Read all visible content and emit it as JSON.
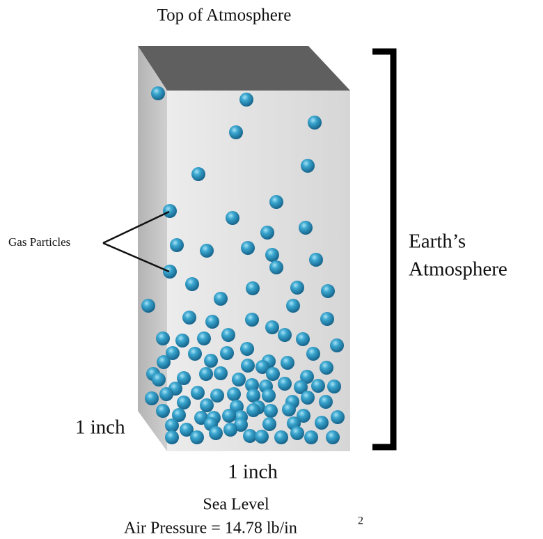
{
  "title": "Top of Atmosphere",
  "particles_label": "Gas Particles",
  "atmosphere_label": [
    "Earth’s",
    "Atmosphere"
  ],
  "depth_label": "1 inch",
  "width_label": "1 inch",
  "sea_level": "Sea Level",
  "pressure": {
    "text": "Air Pressure = 14.78 lb/in",
    "exponent": "2"
  }
}
